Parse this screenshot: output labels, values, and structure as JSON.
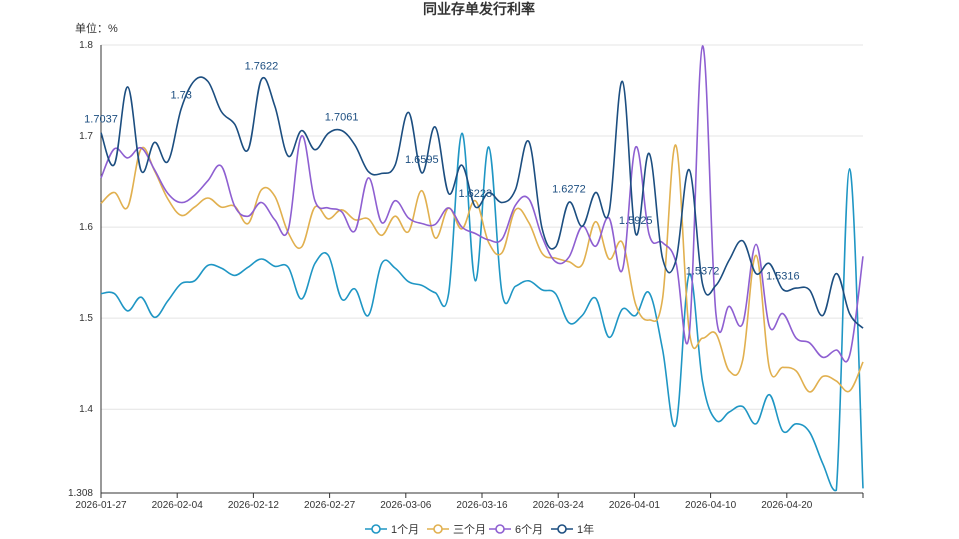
{
  "chart_data": {
    "type": "line",
    "title": "同业存单发行利率",
    "unit_label": "单位：%",
    "ylim": [
      1.308,
      1.8
    ],
    "y_ticks": [
      "1.308",
      "1.4",
      "1.5",
      "1.6",
      "1.7",
      "1.8"
    ],
    "x_ticks": [
      "2026-01-27",
      "2026-02-04",
      "2026-02-12",
      "2026-02-27",
      "2026-03-06",
      "2026-03-16",
      "2026-03-24",
      "2026-04-01",
      "2026-04-10",
      "2026-04-20"
    ],
    "grid": "horizontal",
    "legend_position": "bottom",
    "series": [
      {
        "name": "1个月",
        "color": "#1f96c4",
        "values": [
          1.527,
          1.527,
          1.508,
          1.523,
          1.501,
          1.519,
          1.538,
          1.541,
          1.558,
          1.555,
          1.547,
          1.556,
          1.565,
          1.557,
          1.556,
          1.521,
          1.56,
          1.569,
          1.521,
          1.532,
          1.503,
          1.56,
          1.555,
          1.54,
          1.536,
          1.528,
          1.527,
          1.703,
          1.541,
          1.688,
          1.527,
          1.535,
          1.541,
          1.531,
          1.527,
          1.495,
          1.503,
          1.522,
          1.479,
          1.51,
          1.503,
          1.528,
          1.466,
          1.383,
          1.548,
          1.43,
          1.388,
          1.397,
          1.403,
          1.384,
          1.416,
          1.376,
          1.384,
          1.375,
          1.34,
          1.311,
          1.664,
          1.313
        ]
      },
      {
        "name": "三个月",
        "color": "#e1b04f",
        "values": [
          1.626,
          1.638,
          1.622,
          1.686,
          1.662,
          1.631,
          1.613,
          1.622,
          1.632,
          1.622,
          1.623,
          1.604,
          1.641,
          1.634,
          1.594,
          1.578,
          1.622,
          1.609,
          1.619,
          1.608,
          1.609,
          1.591,
          1.612,
          1.595,
          1.64,
          1.588,
          1.621,
          1.598,
          1.629,
          1.583,
          1.572,
          1.619,
          1.605,
          1.571,
          1.566,
          1.562,
          1.559,
          1.606,
          1.565,
          1.583,
          1.515,
          1.498,
          1.521,
          1.69,
          1.486,
          1.478,
          1.483,
          1.442,
          1.454,
          1.569,
          1.445,
          1.446,
          1.442,
          1.419,
          1.436,
          1.431,
          1.42,
          1.452
        ]
      },
      {
        "name": "6个月",
        "color": "#8e5fd1",
        "values": [
          1.654,
          1.686,
          1.676,
          1.687,
          1.663,
          1.637,
          1.627,
          1.635,
          1.651,
          1.667,
          1.623,
          1.612,
          1.627,
          1.608,
          1.597,
          1.7,
          1.629,
          1.621,
          1.617,
          1.596,
          1.654,
          1.605,
          1.629,
          1.61,
          1.604,
          1.603,
          1.621,
          1.6,
          1.593,
          1.586,
          1.587,
          1.624,
          1.631,
          1.589,
          1.562,
          1.567,
          1.601,
          1.579,
          1.61,
          1.553,
          1.688,
          1.592,
          1.583,
          1.562,
          1.482,
          1.799,
          1.505,
          1.513,
          1.494,
          1.581,
          1.491,
          1.505,
          1.478,
          1.473,
          1.457,
          1.465,
          1.459,
          1.568
        ]
      },
      {
        "name": "1年",
        "color": "#1c4e80",
        "values": [
          1.7037,
          1.669,
          1.754,
          1.662,
          1.693,
          1.672,
          1.73,
          1.761,
          1.76,
          1.727,
          1.713,
          1.685,
          1.7622,
          1.733,
          1.678,
          1.706,
          1.685,
          1.703,
          1.7061,
          1.69,
          1.661,
          1.659,
          1.668,
          1.726,
          1.6595,
          1.71,
          1.637,
          1.668,
          1.6223,
          1.638,
          1.627,
          1.641,
          1.694,
          1.598,
          1.578,
          1.6272,
          1.601,
          1.638,
          1.616,
          1.76,
          1.5925,
          1.681,
          1.566,
          1.563,
          1.663,
          1.5372,
          1.536,
          1.564,
          1.585,
          1.549,
          1.56,
          1.5316,
          1.533,
          1.531,
          1.503,
          1.549,
          1.505,
          1.489
        ]
      }
    ],
    "annotations": [
      {
        "label": "1.7037",
        "series": "1年",
        "index": 0
      },
      {
        "label": "1.73",
        "series": "1年",
        "index": 6
      },
      {
        "label": "1.7622",
        "series": "1年",
        "index": 12
      },
      {
        "label": "1.7061",
        "series": "1年",
        "index": 18
      },
      {
        "label": "1.6595",
        "series": "1年",
        "index": 24
      },
      {
        "label": "1.6223",
        "series": "1年",
        "index": 28
      },
      {
        "label": "1.6272",
        "series": "1年",
        "index": 35
      },
      {
        "label": "1.5925",
        "series": "1年",
        "index": 40
      },
      {
        "label": "1.5372",
        "series": "1年",
        "index": 45
      },
      {
        "label": "1.5316",
        "series": "1年",
        "index": 51
      }
    ]
  }
}
